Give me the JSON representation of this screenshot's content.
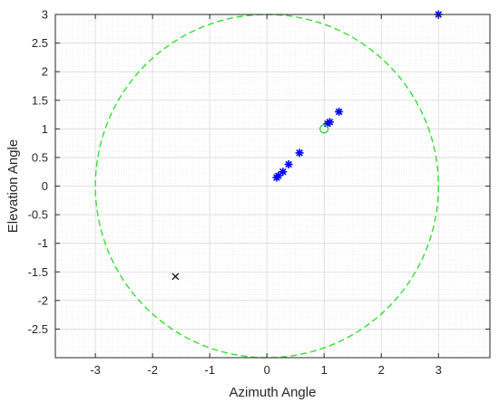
{
  "chart_data": {
    "type": "scatter",
    "xlabel": "Azimuth Angle",
    "ylabel": "Elevation Angle",
    "xlim": [
      -3.7,
      3.9
    ],
    "ylim": [
      -3.0,
      3.0
    ],
    "xticks": [
      -3,
      -2,
      -1,
      0,
      1,
      2,
      3
    ],
    "xtick_labels": [
      "-3",
      "-2",
      "-1",
      "0",
      "1",
      "2",
      "3"
    ],
    "yticks": [
      -2.5,
      -2,
      -1.5,
      -1,
      -0.5,
      0,
      0.5,
      1,
      1.5,
      2,
      2.5,
      3
    ],
    "ytick_labels": [
      "-2.5",
      "-2",
      "-1.5",
      "-1",
      "-0.5",
      "0",
      "0.5",
      "1",
      "1.5",
      "2",
      "2.5",
      "3"
    ],
    "grid": true,
    "minor_grid": true,
    "series": [
      {
        "marker": "asterisk",
        "color": "#0000ff",
        "points": [
          {
            "x": 0.17,
            "y": 0.15
          },
          {
            "x": 0.2,
            "y": 0.18
          },
          {
            "x": 0.28,
            "y": 0.25
          },
          {
            "x": 0.38,
            "y": 0.38
          },
          {
            "x": 0.57,
            "y": 0.58
          },
          {
            "x": 1.06,
            "y": 1.09
          },
          {
            "x": 1.1,
            "y": 1.12
          },
          {
            "x": 1.26,
            "y": 1.3
          },
          {
            "x": 3.0,
            "y": 3.0
          }
        ]
      },
      {
        "marker": "circle",
        "color": "#33cc33",
        "points": [
          {
            "x": 1.0,
            "y": 1.0
          }
        ]
      },
      {
        "marker": "cross",
        "color": "#000000",
        "points": [
          {
            "x": -1.6,
            "y": -1.58
          }
        ]
      },
      {
        "marker": "dashed-circle",
        "color": "#33dd33",
        "center": [
          0,
          0
        ],
        "radius": 3
      }
    ]
  }
}
